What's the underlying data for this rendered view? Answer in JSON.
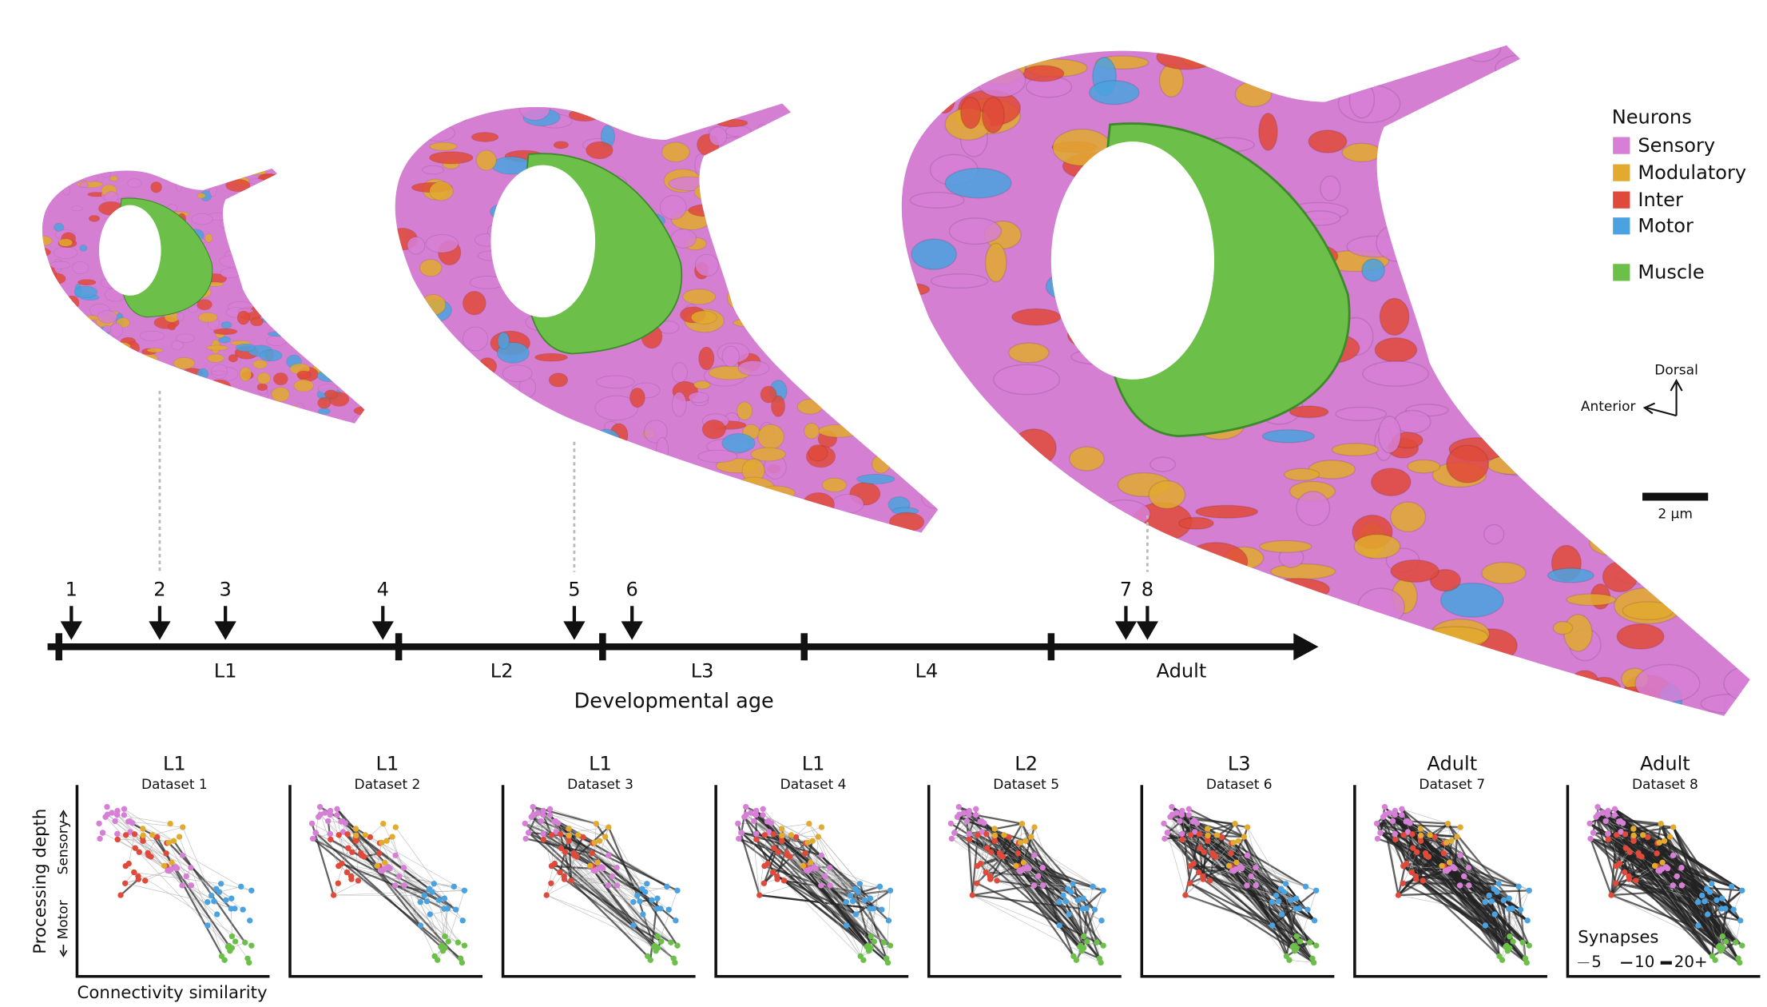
{
  "legend": {
    "title": "Neurons",
    "items": [
      "Sensory",
      "Modulatory",
      "Inter",
      "Motor",
      "Muscle"
    ]
  },
  "orientation": {
    "dorsal": "Dorsal",
    "anterior": "Anterior"
  },
  "scale_bar": "2 µm",
  "timeline": {
    "datasets": [
      "1",
      "2",
      "3",
      "4",
      "5",
      "6",
      "7",
      "8"
    ],
    "stages": [
      "L1",
      "L2",
      "L3",
      "L4",
      "Adult"
    ],
    "axis_label": "Developmental age"
  },
  "panels": [
    {
      "stage": "L1",
      "dataset": "Dataset 1"
    },
    {
      "stage": "L1",
      "dataset": "Dataset 2"
    },
    {
      "stage": "L1",
      "dataset": "Dataset 3"
    },
    {
      "stage": "L1",
      "dataset": "Dataset 4"
    },
    {
      "stage": "L2",
      "dataset": "Dataset 5"
    },
    {
      "stage": "L3",
      "dataset": "Dataset 6"
    },
    {
      "stage": "Adult",
      "dataset": "Dataset 7"
    },
    {
      "stage": "Adult",
      "dataset": "Dataset 8"
    }
  ],
  "panel_axes": {
    "y_label": "Processing depth",
    "y_top": "Sensory",
    "y_bottom": "Motor",
    "x_label": "Connectivity similarity"
  },
  "synapse_legend": {
    "title": "Synapses",
    "items": [
      "5",
      "10",
      "20+"
    ]
  }
}
